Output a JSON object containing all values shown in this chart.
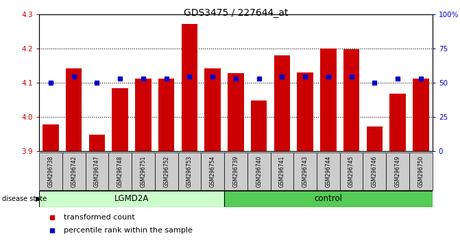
{
  "title": "GDS3475 / 227644_at",
  "samples": [
    "GSM296738",
    "GSM296742",
    "GSM296747",
    "GSM296748",
    "GSM296751",
    "GSM296752",
    "GSM296753",
    "GSM296754",
    "GSM296739",
    "GSM296740",
    "GSM296741",
    "GSM296743",
    "GSM296744",
    "GSM296745",
    "GSM296746",
    "GSM296749",
    "GSM296750"
  ],
  "bar_values": [
    3.978,
    4.143,
    3.948,
    4.085,
    4.112,
    4.112,
    4.272,
    4.143,
    4.128,
    4.048,
    4.18,
    4.13,
    4.2,
    4.198,
    3.972,
    4.068,
    4.112
  ],
  "percentile_values": [
    4.1,
    4.118,
    4.1,
    4.112,
    4.112,
    4.112,
    4.118,
    4.118,
    4.112,
    4.112,
    4.118,
    4.118,
    4.118,
    4.118,
    4.1,
    4.112,
    4.112
  ],
  "lgmd2a_count": 8,
  "ylim_left": [
    3.9,
    4.3
  ],
  "ylim_right": [
    0,
    100
  ],
  "yticks_left": [
    3.9,
    4.0,
    4.1,
    4.2,
    4.3
  ],
  "yticks_right": [
    0,
    25,
    50,
    75,
    100
  ],
  "bar_color": "#cc0000",
  "percentile_color": "#0000cc",
  "bar_bottom": 3.9,
  "lgmd2a_color": "#ccffcc",
  "control_color": "#55cc55",
  "label_bar": "transformed count",
  "label_percentile": "percentile rank within the sample",
  "grid_dotted_at": [
    4.0,
    4.1,
    4.2
  ]
}
